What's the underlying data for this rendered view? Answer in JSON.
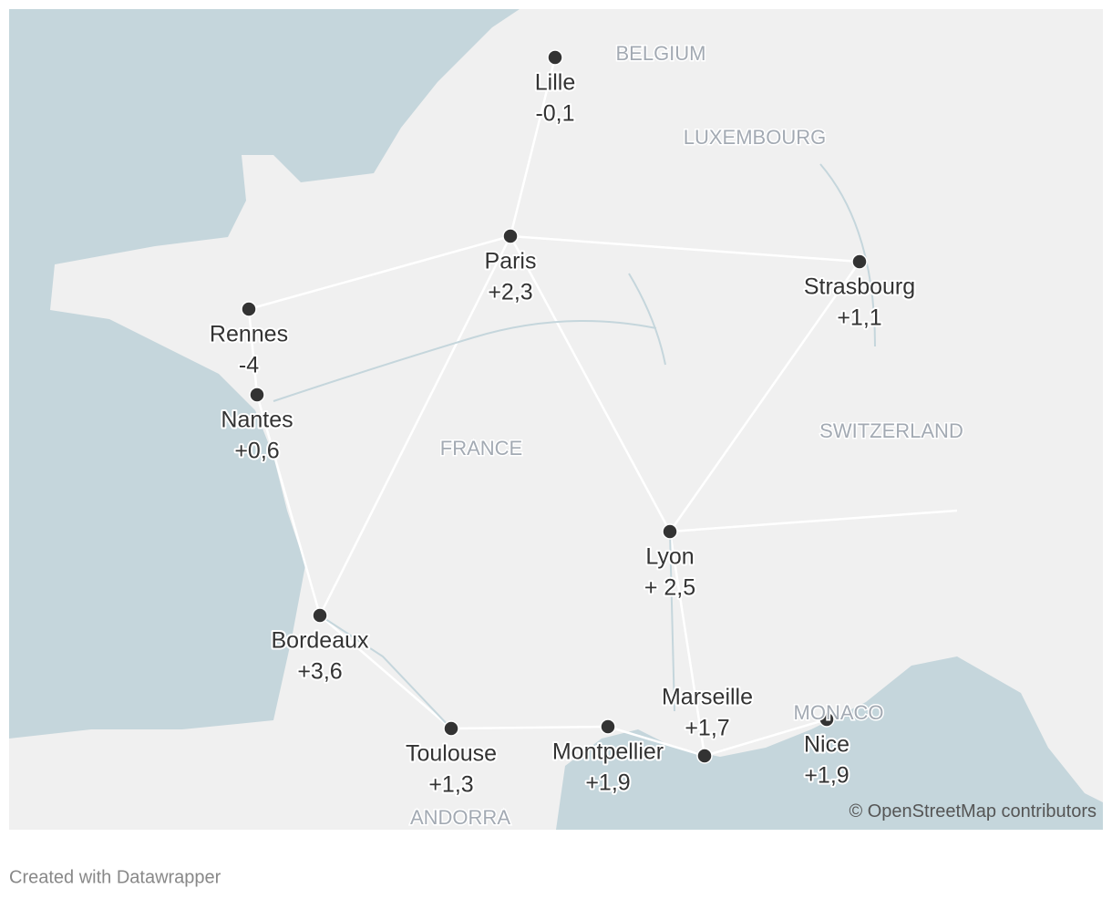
{
  "points": [
    {
      "name": "Lille",
      "label": "-0,1"
    },
    {
      "name": "Paris",
      "label": "+2,3"
    },
    {
      "name": "Strasbourg",
      "label": "+1,1"
    },
    {
      "name": "Rennes",
      "label": "-4"
    },
    {
      "name": "Nantes",
      "label": "+0,6"
    },
    {
      "name": "Lyon",
      "label": "+ 2,5"
    },
    {
      "name": "Bordeaux",
      "label": "+3,6"
    },
    {
      "name": "Toulouse",
      "label": "+1,3"
    },
    {
      "name": "Montpellier",
      "label": "+1,9"
    },
    {
      "name": "Marseille",
      "label": "+1,7"
    },
    {
      "name": "Nice",
      "label": "+1,9"
    }
  ],
  "countries": [
    "BELGIUM",
    "LUXEMBOURG",
    "SWITZERLAND",
    "FRANCE",
    "MONACO",
    "ANDORRA"
  ],
  "attribution": "© OpenStreetMap contributors",
  "footer": "Created with Datawrapper"
}
